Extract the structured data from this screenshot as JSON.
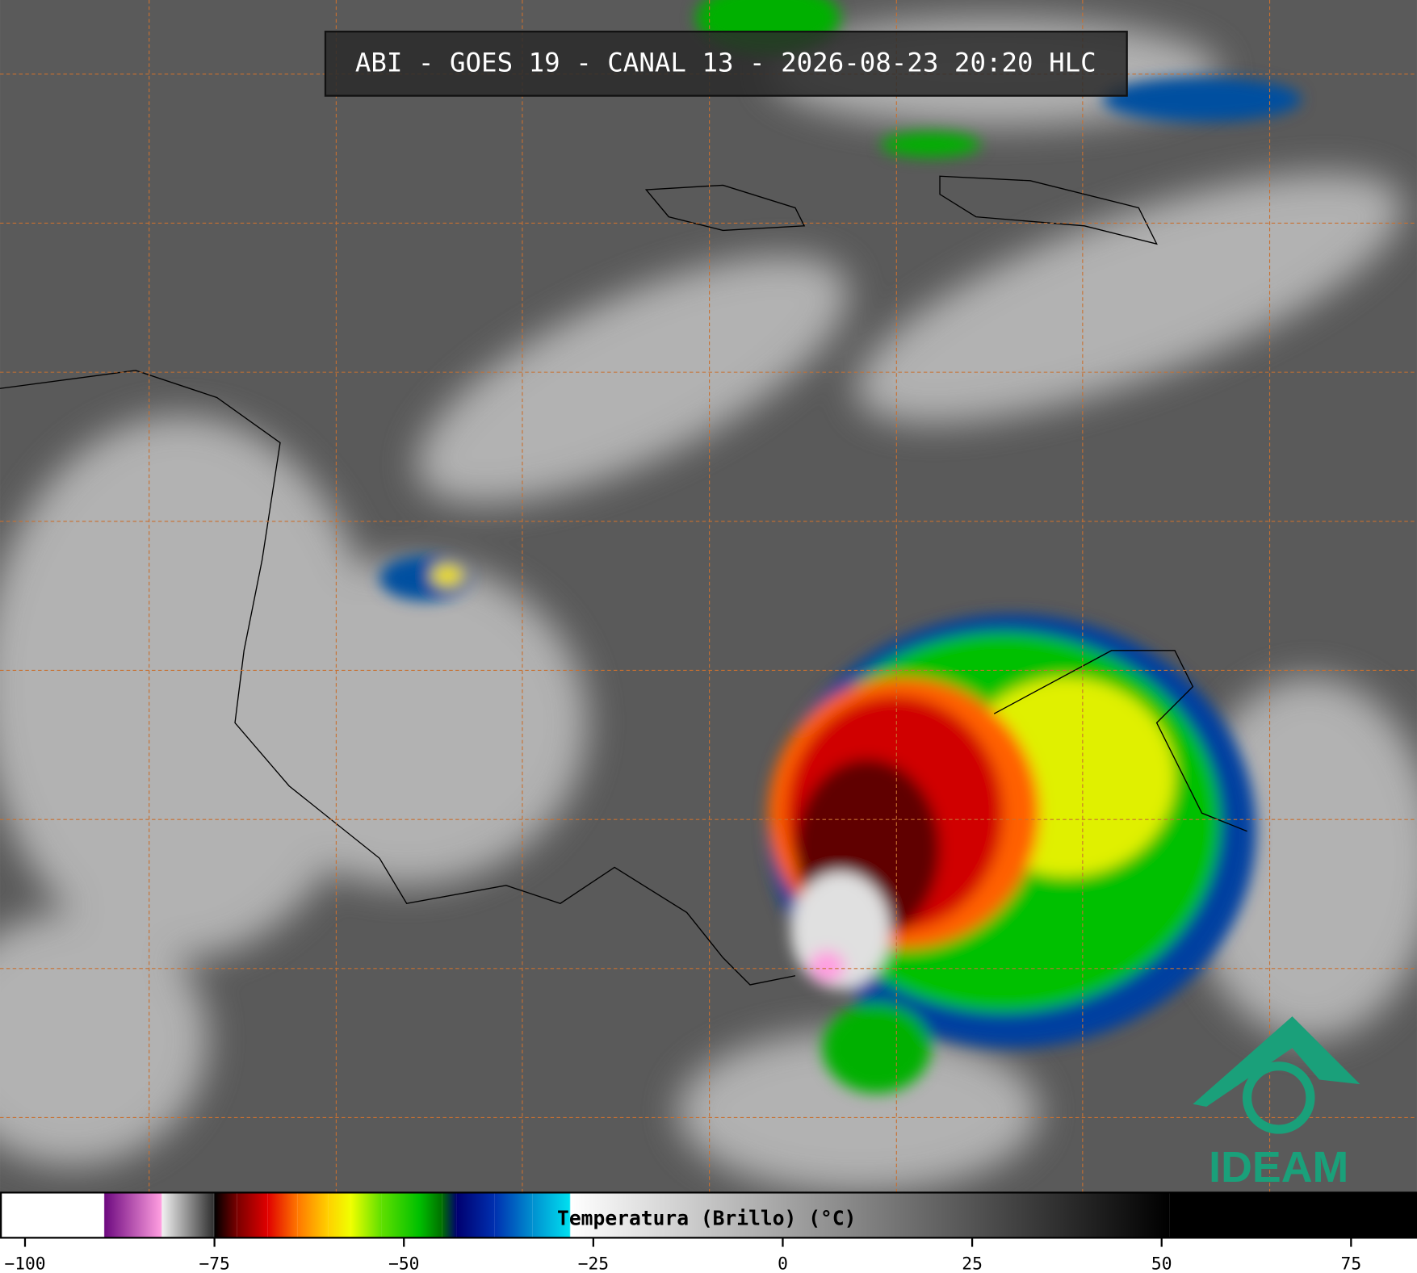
{
  "header": {
    "title": "ABI - GOES 19 - CANAL 13 - 2026-08-23 20:20 HLC"
  },
  "colorbar": {
    "label": "Temperatura (Brillo) (°C)",
    "xlim": [
      -103.3,
      83.7
    ],
    "xticks": [
      {
        "value": -100,
        "label": "−100"
      },
      {
        "value": -75,
        "label": "−75"
      },
      {
        "value": -50,
        "label": "−50"
      },
      {
        "value": -25,
        "label": "−25"
      },
      0,
      25,
      50,
      75
    ],
    "colorscale": [
      [
        -103.3,
        "#ffffff"
      ],
      [
        -89.6,
        "#ffffff"
      ],
      [
        -89.5,
        "#6e0a80"
      ],
      [
        -82,
        "#ff9ee0"
      ],
      [
        -81.9,
        "#f0f0f0"
      ],
      [
        -75.1,
        "#303030"
      ],
      [
        -75,
        "#000000"
      ],
      [
        -72,
        "#7a0000"
      ],
      [
        -68,
        "#e00000"
      ],
      [
        -64,
        "#ff7800"
      ],
      [
        -60,
        "#ffd000"
      ],
      [
        -57,
        "#f0ff00"
      ],
      [
        -53,
        "#60e000"
      ],
      [
        -48,
        "#00c000"
      ],
      [
        -45,
        "#007000"
      ],
      [
        -43,
        "#000070"
      ],
      [
        -38,
        "#0030b0"
      ],
      [
        -33,
        "#0090d0"
      ],
      [
        -28.1,
        "#00e0f0"
      ],
      [
        -28,
        "#ffffff"
      ],
      [
        51,
        "#000000"
      ],
      [
        83.7,
        "#000000"
      ]
    ]
  },
  "logo": {
    "text": "IDEAM"
  }
}
